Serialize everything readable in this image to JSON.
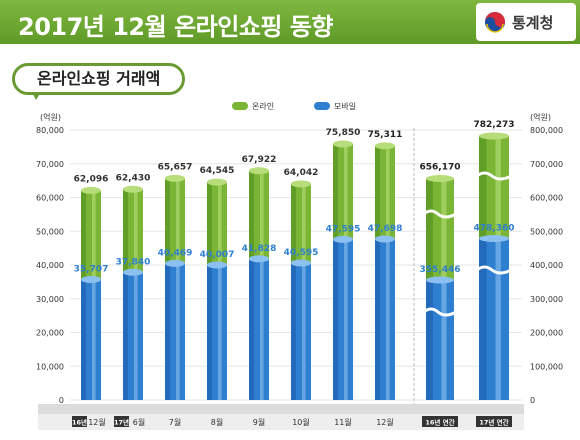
{
  "header": {
    "title_plain": "2017년 12월 ",
    "title_bold": "온라인쇼핑 동향",
    "logo_text": "통계청"
  },
  "chart_data": {
    "type": "bar",
    "title": "온라인쇼핑 거래액",
    "ylabel": "(억원)",
    "ylabel_right": "(억원)",
    "ylim": [
      0,
      80000
    ],
    "ylim_right": [
      0,
      800000
    ],
    "yticks": [
      "0",
      "10,000",
      "20,000",
      "30,000",
      "40,000",
      "50,000",
      "60,000",
      "70,000",
      "80,000"
    ],
    "yticks_right": [
      "0",
      "100,000",
      "200,000",
      "300,000",
      "400,000",
      "500,000",
      "600,000",
      "700,000",
      "800,000"
    ],
    "categories": [
      {
        "tag": "16년",
        "label": "12월"
      },
      {
        "tag": "17년",
        "label": "6월"
      },
      {
        "tag": "",
        "label": "7월"
      },
      {
        "tag": "",
        "label": "8월"
      },
      {
        "tag": "",
        "label": "9월"
      },
      {
        "tag": "",
        "label": "10월"
      },
      {
        "tag": "",
        "label": "11월"
      },
      {
        "tag": "",
        "label": "12월"
      },
      {
        "tag": "16년 연간",
        "label": ""
      },
      {
        "tag": "17년 연간",
        "label": ""
      }
    ],
    "legend": [
      "온라인",
      "모바일"
    ],
    "series": [
      {
        "name": "온라인",
        "color": "#7ab536",
        "values": [
          62096,
          62430,
          65657,
          64545,
          67922,
          64042,
          75850,
          75311,
          656170,
          782273
        ],
        "labels": [
          "62,096",
          "62,430",
          "65,657",
          "64,545",
          "67,922",
          "64,042",
          "75,850",
          "75,311",
          "656,170",
          "782,273"
        ]
      },
      {
        "name": "모바일",
        "color": "#2f7fd0",
        "values": [
          35707,
          37840,
          40469,
          40007,
          41828,
          40595,
          47595,
          47698,
          355446,
          478360
        ],
        "labels": [
          "35,707",
          "37,840",
          "40,469",
          "40,007",
          "41,828",
          "40,595",
          "47,595",
          "47,698",
          "355,446",
          "478,360"
        ]
      }
    ]
  }
}
